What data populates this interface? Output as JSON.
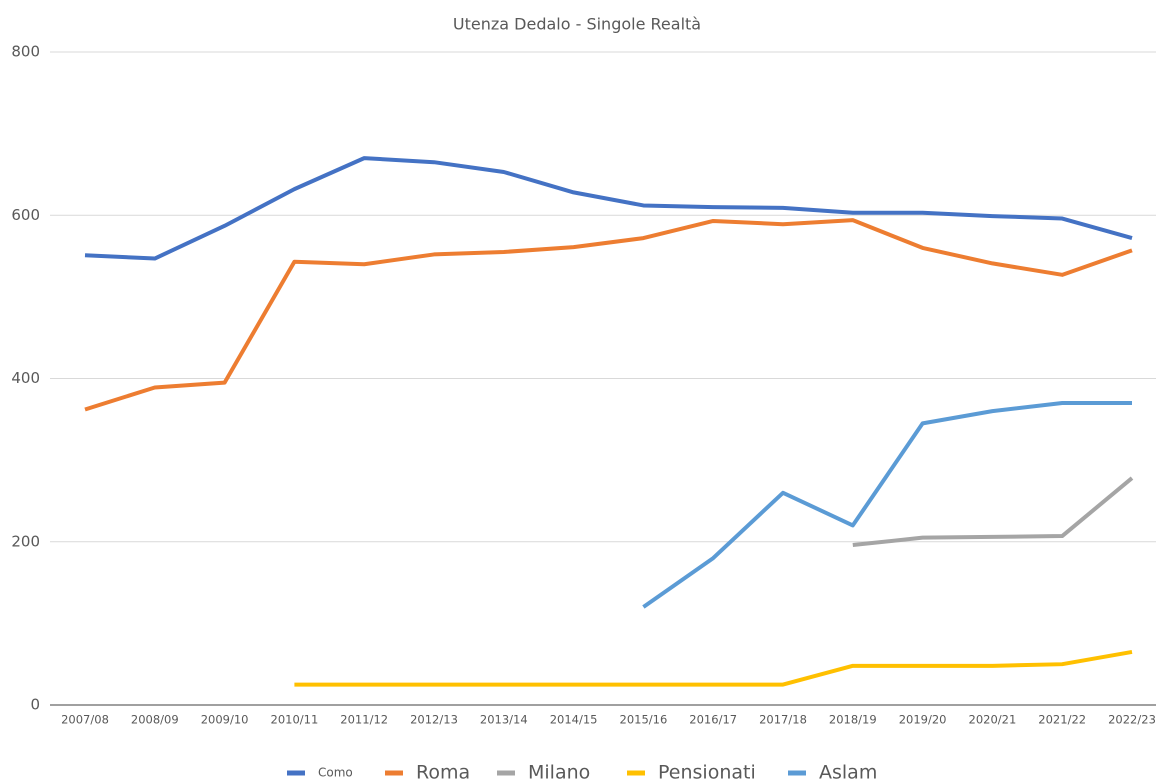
{
  "chart_data": {
    "type": "line",
    "title": "Utenza Dedalo - Singole Realtà",
    "categories": [
      "2007/08",
      "2008/09",
      "2009/10",
      "2010/11",
      "2011/12",
      "2012/13",
      "2013/14",
      "2014/15",
      "2015/16",
      "2016/17",
      "2017/18",
      "2018/19",
      "2019/20",
      "2020/21",
      "2021/22",
      "2022/23"
    ],
    "series": [
      {
        "name": "Como",
        "color": "#4472c4",
        "values": [
          551,
          547,
          587,
          632,
          670,
          665,
          653,
          628,
          612,
          610,
          609,
          603,
          603,
          599,
          596,
          572
        ]
      },
      {
        "name": "Roma",
        "color": "#ed7d31",
        "values": [
          362,
          389,
          395,
          543,
          540,
          552,
          555,
          561,
          572,
          593,
          589,
          594,
          560,
          541,
          527,
          557
        ]
      },
      {
        "name": "Milano",
        "color": "#a5a5a5",
        "values": [
          null,
          null,
          null,
          null,
          null,
          null,
          null,
          null,
          null,
          null,
          null,
          196,
          205,
          206,
          207,
          278
        ]
      },
      {
        "name": "Pensionati",
        "color": "#ffc000",
        "values": [
          null,
          null,
          null,
          25,
          25,
          25,
          25,
          25,
          25,
          25,
          25,
          48,
          48,
          48,
          50,
          65
        ]
      },
      {
        "name": "Aslam",
        "color": "#5b9bd5",
        "values": [
          null,
          null,
          null,
          null,
          null,
          null,
          null,
          null,
          120,
          180,
          260,
          220,
          345,
          360,
          370,
          370
        ]
      }
    ],
    "ylim": [
      0,
      800
    ],
    "yticks": [
      0,
      200,
      400,
      600,
      800
    ],
    "grid": true,
    "legend": "bottom"
  }
}
